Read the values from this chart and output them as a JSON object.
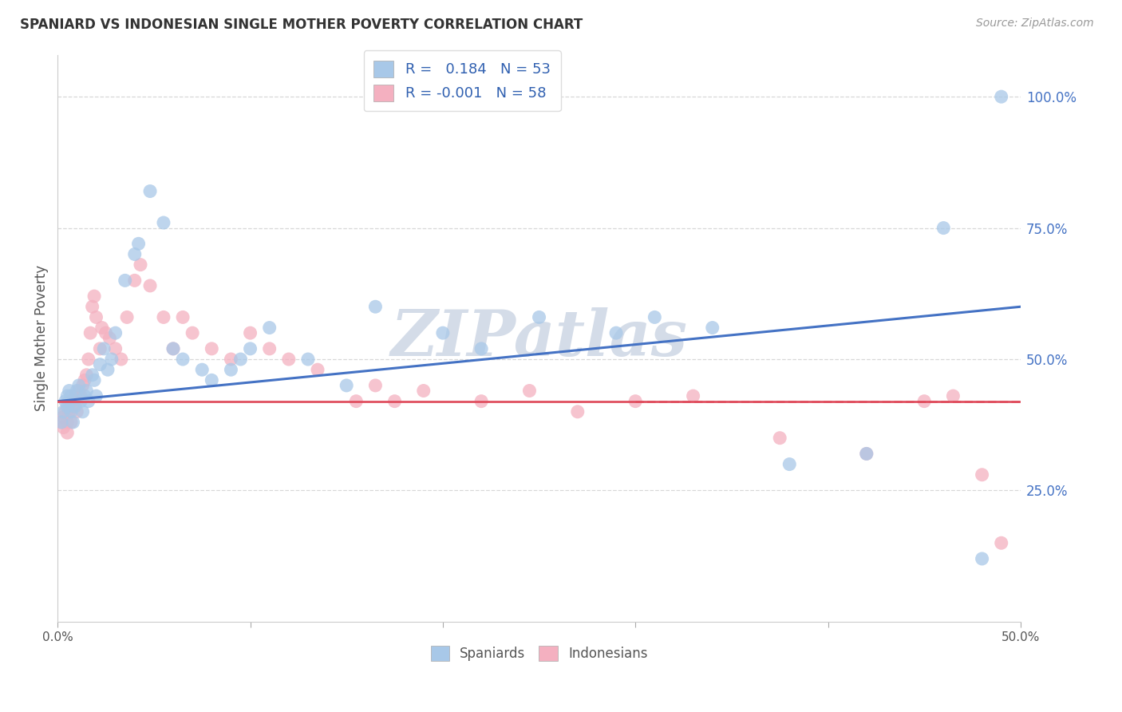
{
  "title": "SPANIARD VS INDONESIAN SINGLE MOTHER POVERTY CORRELATION CHART",
  "source": "Source: ZipAtlas.com",
  "ylabel": "Single Mother Poverty",
  "ytick_labels": [
    "100.0%",
    "75.0%",
    "50.0%",
    "25.0%"
  ],
  "ytick_values": [
    1.0,
    0.75,
    0.5,
    0.25
  ],
  "xtick_labels": [
    "0.0%",
    "",
    "",
    "",
    "",
    "50.0%"
  ],
  "xtick_values": [
    0.0,
    0.1,
    0.2,
    0.3,
    0.4,
    0.5
  ],
  "xlim": [
    0.0,
    0.5
  ],
  "ylim": [
    0.0,
    1.08
  ],
  "spaniards_x": [
    0.002,
    0.003,
    0.004,
    0.005,
    0.005,
    0.006,
    0.006,
    0.007,
    0.007,
    0.008,
    0.009,
    0.01,
    0.011,
    0.012,
    0.013,
    0.014,
    0.015,
    0.016,
    0.018,
    0.019,
    0.02,
    0.022,
    0.024,
    0.026,
    0.028,
    0.03,
    0.035,
    0.04,
    0.042,
    0.048,
    0.055,
    0.06,
    0.065,
    0.075,
    0.08,
    0.09,
    0.095,
    0.1,
    0.11,
    0.13,
    0.15,
    0.165,
    0.2,
    0.22,
    0.25,
    0.29,
    0.31,
    0.34,
    0.38,
    0.42,
    0.46,
    0.48,
    0.49
  ],
  "spaniards_y": [
    0.38,
    0.4,
    0.42,
    0.41,
    0.43,
    0.44,
    0.42,
    0.4,
    0.43,
    0.38,
    0.41,
    0.44,
    0.45,
    0.42,
    0.4,
    0.43,
    0.44,
    0.42,
    0.47,
    0.46,
    0.43,
    0.49,
    0.52,
    0.48,
    0.5,
    0.55,
    0.65,
    0.7,
    0.72,
    0.82,
    0.76,
    0.52,
    0.5,
    0.48,
    0.46,
    0.48,
    0.5,
    0.52,
    0.56,
    0.5,
    0.45,
    0.6,
    0.55,
    0.52,
    0.58,
    0.55,
    0.58,
    0.56,
    0.3,
    0.32,
    0.75,
    0.12,
    1.0
  ],
  "indonesians_x": [
    0.002,
    0.003,
    0.003,
    0.004,
    0.005,
    0.005,
    0.006,
    0.007,
    0.007,
    0.008,
    0.009,
    0.01,
    0.01,
    0.011,
    0.012,
    0.013,
    0.014,
    0.015,
    0.016,
    0.017,
    0.018,
    0.019,
    0.02,
    0.022,
    0.023,
    0.025,
    0.027,
    0.03,
    0.033,
    0.036,
    0.04,
    0.043,
    0.048,
    0.055,
    0.06,
    0.065,
    0.07,
    0.08,
    0.09,
    0.1,
    0.11,
    0.12,
    0.135,
    0.155,
    0.165,
    0.175,
    0.19,
    0.22,
    0.245,
    0.27,
    0.3,
    0.33,
    0.375,
    0.42,
    0.45,
    0.465,
    0.48,
    0.49
  ],
  "indonesians_y": [
    0.38,
    0.39,
    0.37,
    0.4,
    0.38,
    0.36,
    0.4,
    0.42,
    0.38,
    0.41,
    0.43,
    0.42,
    0.4,
    0.44,
    0.43,
    0.45,
    0.46,
    0.47,
    0.5,
    0.55,
    0.6,
    0.62,
    0.58,
    0.52,
    0.56,
    0.55,
    0.54,
    0.52,
    0.5,
    0.58,
    0.65,
    0.68,
    0.64,
    0.58,
    0.52,
    0.58,
    0.55,
    0.52,
    0.5,
    0.55,
    0.52,
    0.5,
    0.48,
    0.42,
    0.45,
    0.42,
    0.44,
    0.42,
    0.44,
    0.4,
    0.42,
    0.43,
    0.35,
    0.32,
    0.42,
    0.43,
    0.28,
    0.15
  ],
  "spaniard_color": "#a8c8e8",
  "indonesian_color": "#f4b0c0",
  "spaniard_line_color": "#4472c4",
  "indonesian_line_color": "#e05060",
  "background_color": "#ffffff",
  "grid_color": "#d8d8d8",
  "watermark": "ZIPatlas",
  "watermark_color": "#d4dce8",
  "R_spaniard": 0.184,
  "N_spaniard": 53,
  "R_indonesian": -0.001,
  "N_indonesian": 58,
  "legend_R_color": "#3060b0"
}
